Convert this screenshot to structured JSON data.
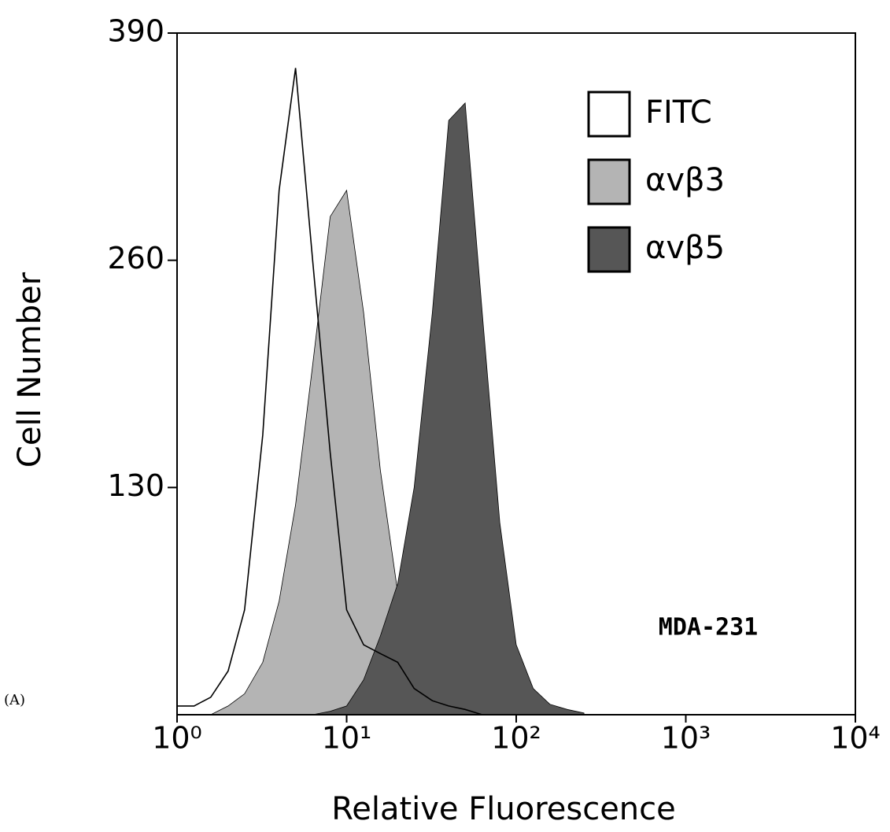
{
  "chart_data": {
    "type": "histogram",
    "x_label": "Relative Fluorescence",
    "y_label": "Cell Number",
    "annotations": [
      "MDA-231",
      "(A)"
    ],
    "x_log": true,
    "xlim": [
      1,
      10000
    ],
    "xticks": [
      {
        "value": 1,
        "label": "10⁰"
      },
      {
        "value": 10,
        "label": "10¹"
      },
      {
        "value": 100,
        "label": "10²"
      },
      {
        "value": 1000,
        "label": "10³"
      },
      {
        "value": 10000,
        "label": "10⁴"
      }
    ],
    "ylim": [
      0,
      390
    ],
    "yticks": [
      130,
      260,
      390
    ],
    "x": [
      1,
      1.26,
      1.58,
      2,
      2.5,
      3.2,
      4,
      5,
      6.3,
      8,
      10,
      12.6,
      15.8,
      20,
      25,
      32,
      40,
      50,
      63,
      80,
      100,
      126,
      158,
      200,
      251
    ],
    "series": [
      {
        "name": "FITC",
        "color": "#ffffff",
        "values": [
          5,
          5,
          10,
          25,
          60,
          160,
          300,
          370,
          260,
          150,
          60,
          40,
          35,
          30,
          15,
          8,
          5,
          3,
          0,
          0,
          0,
          0,
          0,
          0,
          0
        ]
      },
      {
        "name": "αvβ3",
        "color": "#b4b4b4",
        "values": [
          0,
          0,
          0,
          5,
          12,
          30,
          65,
          120,
          200,
          285,
          300,
          230,
          140,
          70,
          35,
          15,
          8,
          4,
          2,
          1,
          0,
          0,
          0,
          0,
          0
        ]
      },
      {
        "name": "αvβ5",
        "color": "#565656",
        "values": [
          0,
          0,
          0,
          0,
          0,
          0,
          0,
          0,
          0,
          2,
          5,
          20,
          45,
          75,
          130,
          230,
          340,
          350,
          230,
          110,
          40,
          15,
          6,
          3,
          1
        ]
      }
    ]
  }
}
